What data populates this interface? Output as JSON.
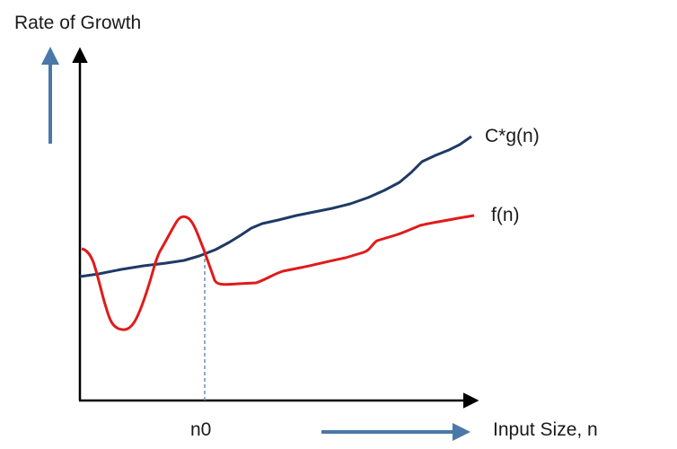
{
  "diagram": {
    "y_axis_label": "Rate of Growth",
    "x_axis_label": "Input Size, n",
    "threshold_label": "n0",
    "curves": [
      {
        "label": "C*g(n)",
        "color": "#1f3a66"
      },
      {
        "label": "f(n)",
        "color": "#e01b1b"
      }
    ],
    "direction_arrow_color": "#4a78a8",
    "axis_color": "#000000",
    "threshold_line_color": "#6a8fb8"
  }
}
